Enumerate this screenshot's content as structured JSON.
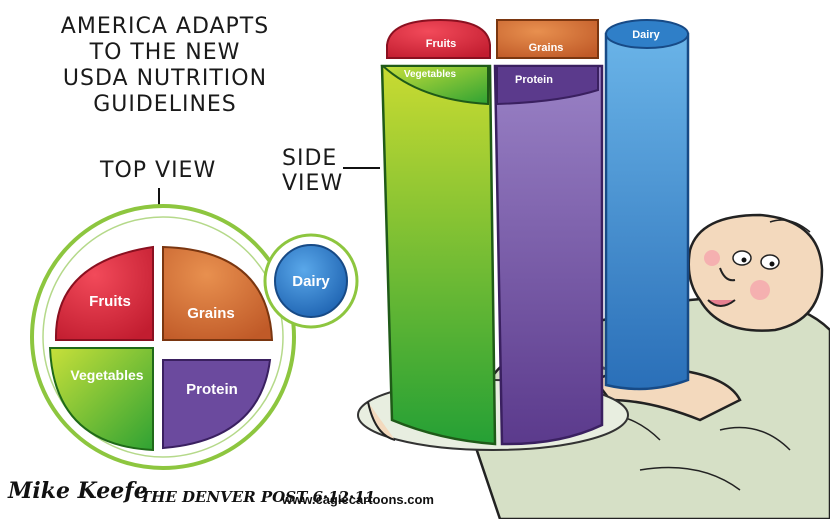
{
  "headline": {
    "line1": "AMERICA ADAPTS",
    "line2": "TO THE NEW",
    "line3": "USDA NUTRITION",
    "line4": "GUIDELINES"
  },
  "labels": {
    "top_view": "TOP VIEW",
    "side_view_line1": "SIDE",
    "side_view_line2": "VIEW"
  },
  "plate_top": {
    "fruits": "Fruits",
    "grains": "Grains",
    "vegetables": "Vegetables",
    "protein": "Protein",
    "dairy": "Dairy"
  },
  "plate_side": {
    "fruits": "Fruits",
    "grains": "Grains",
    "vegetables": "Vegetables",
    "protein": "Protein",
    "dairy": "Dairy"
  },
  "credits": {
    "signature": "Mike Keefe",
    "paper": "THE DENVER POST 6·12·11",
    "website": "www.caglecartoons.com"
  },
  "colors": {
    "fruits": "#d8283a",
    "grains": "#d4733a",
    "vegetables": "#4fb82e",
    "protein": "#6b4a9e",
    "dairy": "#2f7fc8",
    "plate_rim": "#8dc63f",
    "skin": "#f3d9bd",
    "shirt": "#d6e0c6"
  }
}
